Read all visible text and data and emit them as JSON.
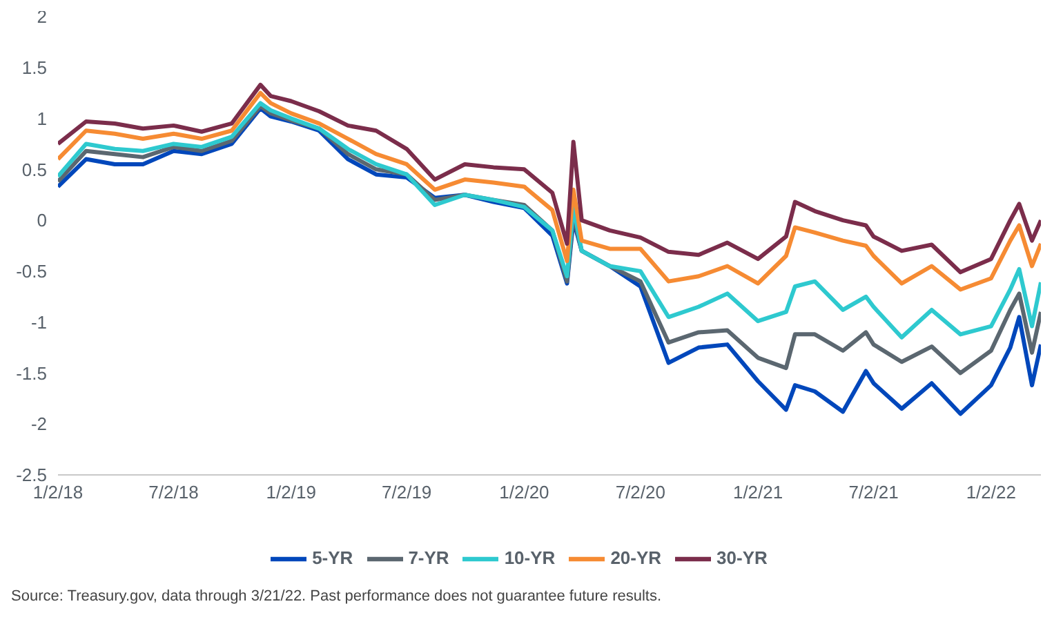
{
  "chart_data": {
    "type": "line",
    "x": [
      "2018-01-02",
      "2018-02-15",
      "2018-04-01",
      "2018-05-15",
      "2018-07-02",
      "2018-08-15",
      "2018-10-01",
      "2018-11-15",
      "2018-12-01",
      "2019-01-02",
      "2019-02-15",
      "2019-04-01",
      "2019-05-15",
      "2019-07-02",
      "2019-08-15",
      "2019-10-01",
      "2019-11-15",
      "2020-01-02",
      "2020-02-15",
      "2020-03-09",
      "2020-03-19",
      "2020-04-01",
      "2020-05-15",
      "2020-07-02",
      "2020-08-15",
      "2020-10-01",
      "2020-11-15",
      "2021-01-02",
      "2021-02-15",
      "2021-03-01",
      "2021-04-01",
      "2021-05-15",
      "2021-06-20",
      "2021-07-02",
      "2021-08-15",
      "2021-10-01",
      "2021-11-15",
      "2022-01-02",
      "2022-02-01",
      "2022-02-15",
      "2022-03-07",
      "2022-03-21"
    ],
    "xlim": [
      "2018-01-02",
      "2022-03-21"
    ],
    "xticks": [
      {
        "value": "2018-01-02",
        "label": "1/2/18"
      },
      {
        "value": "2018-07-02",
        "label": "7/2/18"
      },
      {
        "value": "2019-01-02",
        "label": "1/2/19"
      },
      {
        "value": "2019-07-02",
        "label": "7/2/19"
      },
      {
        "value": "2020-01-02",
        "label": "1/2/20"
      },
      {
        "value": "2020-07-02",
        "label": "7/2/20"
      },
      {
        "value": "2021-01-02",
        "label": "1/2/21"
      },
      {
        "value": "2021-07-02",
        "label": "7/2/21"
      },
      {
        "value": "2022-01-02",
        "label": "1/2/22"
      }
    ],
    "ylim": [
      -2.5,
      2
    ],
    "yticks": [
      -2.5,
      -2,
      -1.5,
      -1,
      -0.5,
      0,
      0.5,
      1,
      1.5,
      2
    ],
    "legend": "bottom",
    "series": [
      {
        "name": "5-YR",
        "color": "#0047bb",
        "values": [
          0.33,
          0.6,
          0.55,
          0.55,
          0.68,
          0.65,
          0.75,
          1.1,
          1.02,
          0.97,
          0.88,
          0.6,
          0.45,
          0.42,
          0.22,
          0.25,
          0.18,
          0.12,
          -0.15,
          -0.62,
          0.0,
          -0.3,
          -0.45,
          -0.65,
          -1.4,
          -1.25,
          -1.22,
          -1.58,
          -1.86,
          -1.62,
          -1.68,
          -1.88,
          -1.48,
          -1.6,
          -1.85,
          -1.6,
          -1.9,
          -1.62,
          -1.25,
          -0.95,
          -1.62,
          -1.22
        ]
      },
      {
        "name": "7-YR",
        "color": "#5b6770",
        "values": [
          0.38,
          0.68,
          0.65,
          0.62,
          0.72,
          0.68,
          0.78,
          1.12,
          1.05,
          0.98,
          0.9,
          0.65,
          0.5,
          0.45,
          0.2,
          0.25,
          0.2,
          0.15,
          -0.1,
          -0.6,
          0.05,
          -0.3,
          -0.45,
          -0.6,
          -1.2,
          -1.1,
          -1.08,
          -1.35,
          -1.45,
          -1.12,
          -1.12,
          -1.28,
          -1.1,
          -1.22,
          -1.39,
          -1.24,
          -1.5,
          -1.28,
          -0.88,
          -0.72,
          -1.3,
          -0.9
        ]
      },
      {
        "name": "10-YR",
        "color": "#2ec9cf",
        "values": [
          0.43,
          0.75,
          0.7,
          0.68,
          0.75,
          0.72,
          0.82,
          1.15,
          1.08,
          1.0,
          0.9,
          0.7,
          0.55,
          0.45,
          0.15,
          0.25,
          0.2,
          0.13,
          -0.1,
          -0.55,
          0.13,
          -0.3,
          -0.45,
          -0.5,
          -0.95,
          -0.85,
          -0.72,
          -0.99,
          -0.9,
          -0.65,
          -0.6,
          -0.88,
          -0.75,
          -0.85,
          -1.15,
          -0.88,
          -1.12,
          -1.04,
          -0.68,
          -0.48,
          -1.04,
          -0.61
        ]
      },
      {
        "name": "20-YR",
        "color": "#f68b33",
        "values": [
          0.6,
          0.88,
          0.85,
          0.8,
          0.85,
          0.8,
          0.88,
          1.25,
          1.15,
          1.05,
          0.95,
          0.8,
          0.65,
          0.55,
          0.3,
          0.4,
          0.37,
          0.33,
          0.1,
          -0.4,
          0.3,
          -0.2,
          -0.28,
          -0.28,
          -0.6,
          -0.55,
          -0.45,
          -0.62,
          -0.35,
          -0.07,
          -0.12,
          -0.2,
          -0.25,
          -0.35,
          -0.62,
          -0.45,
          -0.68,
          -0.57,
          -0.2,
          -0.05,
          -0.45,
          -0.23
        ]
      },
      {
        "name": "30-YR",
        "color": "#7b2d4b",
        "values": [
          0.75,
          0.97,
          0.95,
          0.9,
          0.93,
          0.87,
          0.95,
          1.33,
          1.22,
          1.17,
          1.07,
          0.93,
          0.88,
          0.7,
          0.4,
          0.55,
          0.52,
          0.5,
          0.27,
          -0.23,
          0.77,
          0.0,
          -0.1,
          -0.17,
          -0.31,
          -0.34,
          -0.22,
          -0.38,
          -0.16,
          0.18,
          0.09,
          0.0,
          -0.05,
          -0.16,
          -0.3,
          -0.24,
          -0.51,
          -0.38,
          0.0,
          0.16,
          -0.2,
          0.0
        ]
      }
    ],
    "annotations": [
      "Source: Treasury.gov, data through 3/21/22. Past performance does not guarantee future results."
    ]
  }
}
